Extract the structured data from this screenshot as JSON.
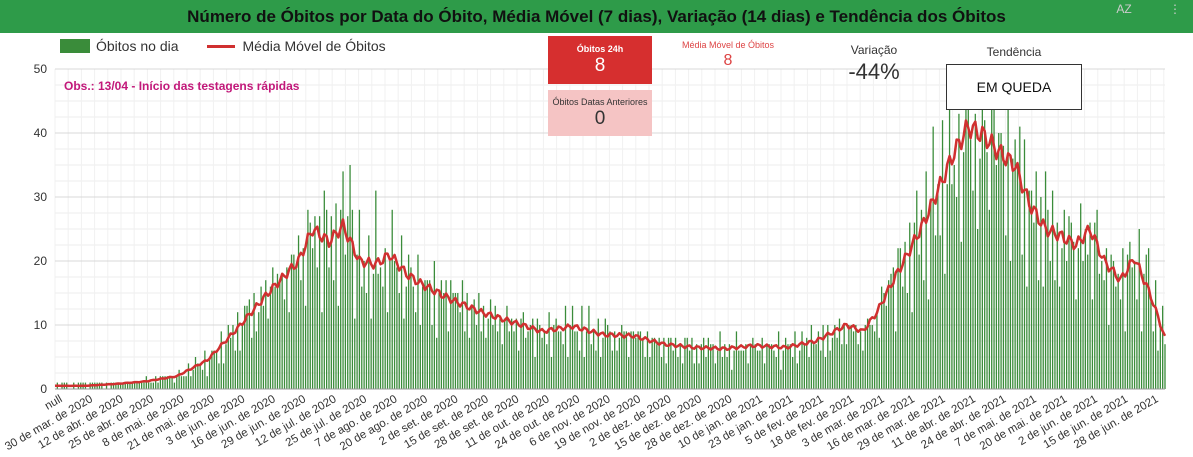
{
  "title": "Número de Óbitos por Data do Óbito, Média Móvel (7 dias), Variação (14 dias) e Tendência dos Óbitos",
  "legend": {
    "bars_label": "Óbitos no dia",
    "line_label": "Média Móvel de Óbitos"
  },
  "note": "Obs.: 13/04 - Início das testagens rápidas",
  "cards": {
    "obitos_24h": {
      "label": "Óbitos 24h",
      "value": "8"
    },
    "obitos_anteriores": {
      "label": "Óbitos Datas Anteriores",
      "value": "0"
    },
    "media_movel": {
      "label": "Média Móvel de Óbitos",
      "value": "8"
    },
    "variacao": {
      "label": "Variação",
      "value": "-44%"
    },
    "tendencia": {
      "label": "Tendência",
      "value": "EM QUEDA"
    }
  },
  "colors": {
    "header": "#2e9b49",
    "bars": "#3a8c3a",
    "line": "#d03030",
    "card_24h": "#d62f2f",
    "card_ant": "#f5c4c4",
    "note": "#c2187a"
  },
  "icons": {
    "sort": "az-sort-icon",
    "menu": "kebab-menu-icon"
  },
  "icon_glyphs": {
    "sort": "AZ",
    "menu": "⋮"
  },
  "chart_data": {
    "type": "bar",
    "x_start": "2020-03-17",
    "x_end": "2021-07-04",
    "ylim": [
      0,
      50
    ],
    "yticks": [
      0,
      10,
      20,
      30,
      40,
      50
    ],
    "tick_labels": [
      "null",
      "30 de mar. de 2020",
      "12 de abr. de 2020",
      "25 de abr. de 2020",
      "8 de mai. de 2020",
      "21 de mai. de 2020",
      "3 de jun. de 2020",
      "16 de jun. de 2020",
      "29 de jun. de 2020",
      "12 de jul. de 2020",
      "25 de jul. de 2020",
      "7 de ago. de 2020",
      "20 de ago. de 2020",
      "2 de set. de 2020",
      "15 de set. de 2020",
      "28 de set. de 2020",
      "11 de out. de 2020",
      "24 de out. de 2020",
      "6 de nov. de 2020",
      "19 de nov. de 2020",
      "2 de dez. de 2020",
      "15 de dez. de 2020",
      "28 de dez. de 2020",
      "10 de jan. de 2021",
      "23 de jan. de 2021",
      "5 de fev. de 2021",
      "18 de fev. de 2021",
      "3 de mar. de 2021",
      "16 de mar. de 2021",
      "29 de mar. de 2021",
      "11 de abr. de 2021",
      "24 de abr. de 2021",
      "7 de mai. de 2021",
      "20 de mai. de 2021",
      "2 de jun. de 2021",
      "15 de jun. de 2021",
      "28 de jun. de 2021"
    ],
    "moving_average": {
      "name": "Média Móvel de Óbitos",
      "dates": [
        "2020-03-17",
        "2020-03-30",
        "2020-04-12",
        "2020-04-25",
        "2020-05-08",
        "2020-05-21",
        "2020-06-03",
        "2020-06-16",
        "2020-06-29",
        "2020-07-05",
        "2020-07-12",
        "2020-07-18",
        "2020-07-25",
        "2020-08-01",
        "2020-08-07",
        "2020-08-14",
        "2020-08-20",
        "2020-09-02",
        "2020-09-15",
        "2020-09-28",
        "2020-10-11",
        "2020-10-24",
        "2020-11-06",
        "2020-11-19",
        "2020-12-02",
        "2020-12-15",
        "2020-12-28",
        "2021-01-10",
        "2021-01-23",
        "2021-02-05",
        "2021-02-18",
        "2021-02-25",
        "2021-03-03",
        "2021-03-10",
        "2021-03-16",
        "2021-03-23",
        "2021-03-29",
        "2021-04-05",
        "2021-04-11",
        "2021-04-18",
        "2021-04-24",
        "2021-05-01",
        "2021-05-07",
        "2021-05-14",
        "2021-05-20",
        "2021-05-27",
        "2021-06-02",
        "2021-06-08",
        "2021-06-15",
        "2021-06-21",
        "2021-06-28",
        "2021-07-04"
      ],
      "values": [
        0.5,
        0.5,
        0.8,
        1.2,
        2.0,
        4.5,
        9.5,
        15.0,
        20.0,
        25.0,
        23.0,
        25.5,
        20.0,
        19.5,
        21.0,
        18.0,
        16.5,
        14.0,
        12.0,
        10.5,
        9.0,
        9.8,
        8.5,
        8.3,
        7.0,
        6.5,
        6.3,
        6.8,
        6.5,
        7.5,
        10.0,
        9.0,
        12.0,
        17.0,
        21.0,
        26.0,
        31.0,
        37.0,
        41.0,
        39.5,
        37.0,
        35.0,
        29.0,
        25.0,
        24.0,
        22.5,
        25.0,
        20.0,
        17.0,
        20.5,
        14.5,
        8.0
      ]
    },
    "daily": {
      "name": "Óbitos no dia",
      "dates": [
        "2020-03-17",
        "2020-04-12",
        "2020-05-08",
        "2020-06-03",
        "2020-06-29",
        "2020-07-12",
        "2020-07-25",
        "2020-08-20",
        "2020-09-15",
        "2020-10-11",
        "2020-11-06",
        "2020-12-02",
        "2020-12-28",
        "2021-01-23",
        "2021-02-18",
        "2021-03-03",
        "2021-03-16",
        "2021-03-29",
        "2021-04-11",
        "2021-04-24",
        "2021-05-07",
        "2021-05-20",
        "2021-06-02",
        "2021-06-15",
        "2021-06-28",
        "2021-07-04"
      ],
      "values": [
        0,
        1,
        2,
        11,
        24,
        32,
        36,
        18,
        12,
        9,
        10,
        8,
        7,
        6,
        8,
        12,
        25,
        42,
        44,
        44,
        40,
        28,
        23,
        18,
        22,
        9
      ]
    }
  }
}
